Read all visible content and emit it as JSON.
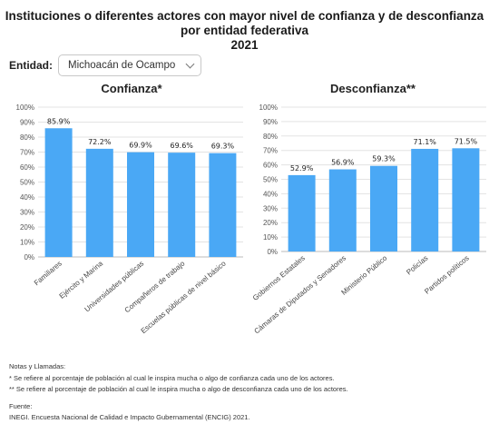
{
  "header": {
    "title": "Instituciones o diferentes actores con mayor nivel de confianza y de desconfianza por entidad federativa",
    "year": "2021"
  },
  "filter": {
    "label": "Entidad:",
    "selected": "Michoacán de Ocampo",
    "icon": "chevron-down-icon"
  },
  "chart_data": [
    {
      "type": "bar",
      "title": "Confianza*",
      "categories": [
        "Familiares",
        "Ejército y Marina",
        "Universidades públicas",
        "Compañeros de trabajo",
        "Escuelas públicas de nivel básico"
      ],
      "values": [
        85.9,
        72.2,
        69.9,
        69.6,
        69.3
      ],
      "value_labels": [
        "85.9%",
        "72.2%",
        "69.9%",
        "69.6%",
        "69.3%"
      ],
      "ylim": [
        0,
        100
      ],
      "yticks": [
        "0%",
        "10%",
        "20%",
        "30%",
        "40%",
        "50%",
        "60%",
        "70%",
        "80%",
        "90%",
        "100%"
      ],
      "grid": true,
      "color": "#4aa8f5"
    },
    {
      "type": "bar",
      "title": "Desconfianza**",
      "categories": [
        "Gobiernos Estatales",
        "Cámaras de Diputados y Senadores",
        "Ministerio Público",
        "Policías",
        "Partidos políticos"
      ],
      "values": [
        52.9,
        56.9,
        59.3,
        71.1,
        71.5
      ],
      "value_labels": [
        "52.9%",
        "56.9%",
        "59.3%",
        "71.1%",
        "71.5%"
      ],
      "ylim": [
        0,
        100
      ],
      "yticks": [
        "0%",
        "10%",
        "20%",
        "30%",
        "40%",
        "50%",
        "60%",
        "70%",
        "80%",
        "90%",
        "100%"
      ],
      "grid": true,
      "color": "#4aa8f5"
    }
  ],
  "notes": {
    "heading": "Notas y Llamadas:",
    "note1": "* Se refiere al porcentaje de población al cual le inspira mucha o algo de confianza cada uno de los actores.",
    "note2": "** Se refiere al porcentaje de población al cual le inspira mucha o algo de desconfianza cada uno de los actores.",
    "source_heading": "Fuente:",
    "source": "INEGI. Encuesta Nacional de Calidad e Impacto Gubernamental (ENCIG) 2021."
  }
}
